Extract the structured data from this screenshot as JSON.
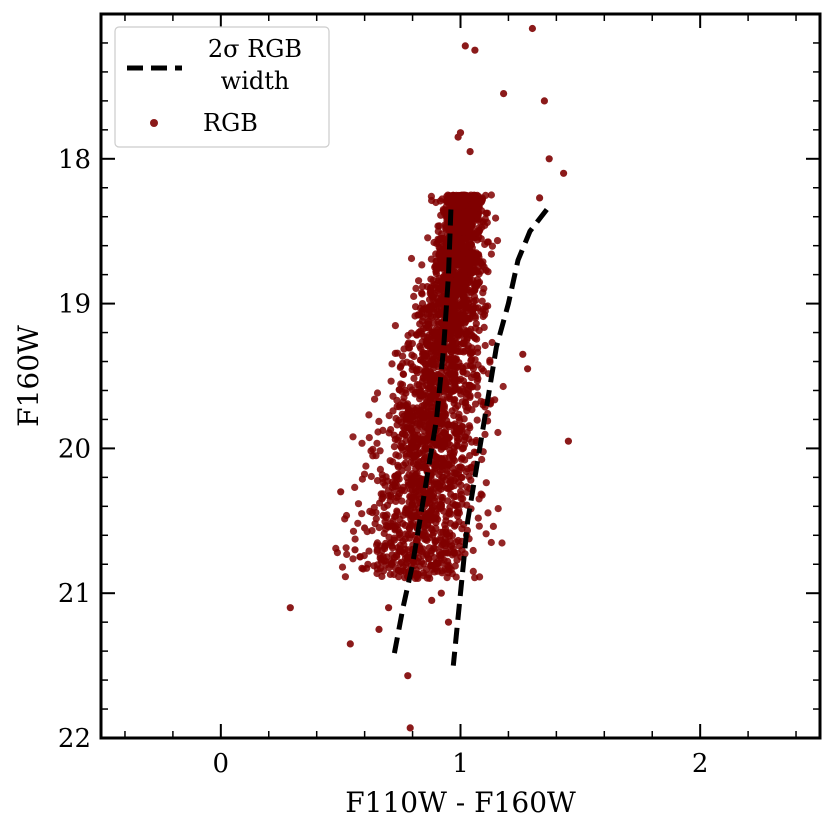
{
  "chart_data": {
    "type": "scatter",
    "title": "",
    "xlabel": "F110W - F160W",
    "ylabel": "F160W",
    "xlim": [
      -0.5,
      2.5
    ],
    "ylim": [
      22,
      17
    ],
    "y_inverted": true,
    "x_major_ticks": [
      0,
      1,
      2
    ],
    "x_minor_step": 0.2,
    "y_major_ticks": [
      18,
      19,
      20,
      21,
      22
    ],
    "y_minor_step": 0.2,
    "x_tick_labels": [
      "0",
      "1",
      "2"
    ],
    "y_tick_labels": [
      "18",
      "19",
      "20",
      "21",
      "22"
    ],
    "grid": false,
    "legend_position": "top-left",
    "legend": [
      {
        "label_line1": "2σ RGB",
        "label_line2": "width",
        "style": "dashed-line",
        "color": "#000000"
      },
      {
        "label_line1": "RGB",
        "label_line2": "",
        "style": "marker",
        "color": "#8b1a1a"
      }
    ],
    "series": [
      {
        "name": "2σ RGB width",
        "kind": "line",
        "dashed": true,
        "color": "#000000",
        "subseries": [
          {
            "x": [
              0.96,
              0.95,
              0.93,
              0.9,
              0.87,
              0.84,
              0.8,
              0.76,
              0.72
            ],
            "y": [
              18.35,
              18.8,
              19.3,
              19.8,
              20.1,
              20.4,
              20.8,
              21.1,
              21.45
            ]
          },
          {
            "x": [
              1.36,
              1.29,
              1.24,
              1.2,
              1.15,
              1.1,
              1.06,
              1.03,
              1.0,
              0.97
            ],
            "y": [
              18.35,
              18.5,
              18.7,
              19.0,
              19.3,
              19.8,
              20.2,
              20.5,
              21.0,
              21.5
            ]
          }
        ]
      },
      {
        "name": "RGB",
        "kind": "scatter",
        "color": "#8b1a1a",
        "core_color": "#800000",
        "dense_cloud": {
          "count": 2600,
          "top_mag": 18.25,
          "bottom_mag": 20.9,
          "center_color_at_top": 1.02,
          "center_slope": 0.085,
          "width_at_top": 0.04,
          "width_slope": 0.035
        },
        "outliers": {
          "x": [
            1.3,
            1.06,
            1.02,
            1.18,
            1.35,
            1.43,
            1.37,
            1.45,
            1.33,
            0.29,
            0.78,
            0.79,
            0.54,
            0.5,
            0.56,
            0.6,
            1.28,
            1.26,
            0.99,
            1.0,
            1.04,
            0.92,
            0.66,
            0.7,
            0.88,
            0.95
          ],
          "y": [
            17.1,
            17.25,
            17.22,
            17.55,
            17.6,
            18.1,
            18.0,
            19.95,
            18.27,
            21.1,
            21.57,
            21.93,
            21.35,
            20.3,
            20.7,
            20.55,
            19.45,
            19.35,
            17.85,
            17.82,
            17.95,
            21.0,
            21.25,
            21.1,
            21.05,
            21.2
          ]
        }
      }
    ]
  }
}
